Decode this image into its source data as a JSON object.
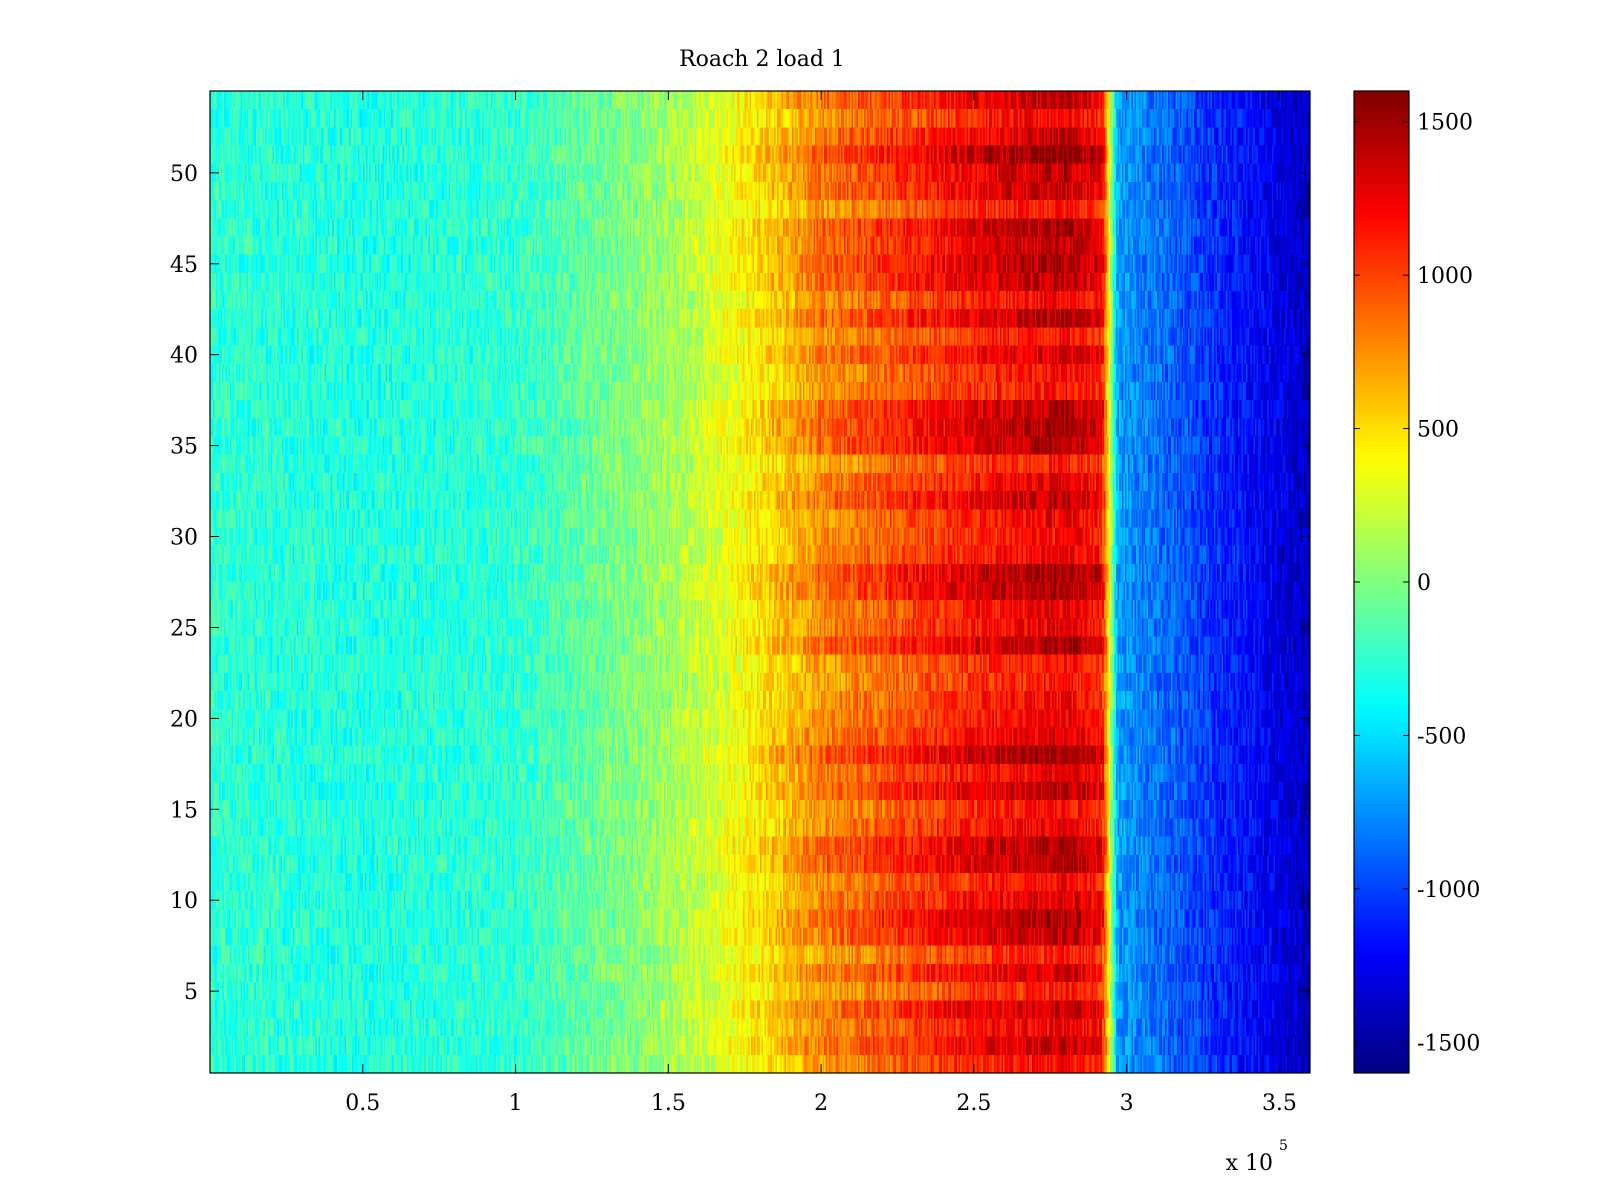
{
  "chart_data": {
    "type": "heatmap",
    "title": "Roach 2 load 1",
    "xlabel": "",
    "ylabel": "",
    "x_multiplier_label": "x 10",
    "x_multiplier_exponent": "5",
    "xlim": [
      0,
      360000
    ],
    "ylim": [
      0.5,
      54.5
    ],
    "rows": 54,
    "x_ticks": [
      0.5,
      1,
      1.5,
      2,
      2.5,
      3,
      3.5
    ],
    "x_tick_labels": [
      "0.5",
      "1",
      "1.5",
      "2",
      "2.5",
      "3",
      "3.5"
    ],
    "y_ticks": [
      5,
      10,
      15,
      20,
      25,
      30,
      35,
      40,
      45,
      50
    ],
    "y_tick_labels": [
      "5",
      "10",
      "15",
      "20",
      "25",
      "30",
      "35",
      "40",
      "45",
      "50"
    ],
    "colormap": "jet",
    "clim": [
      -1600,
      1600
    ],
    "colorbar_ticks": [
      1500,
      1000,
      500,
      0,
      -500,
      -1000,
      -1500
    ],
    "colorbar_tick_labels": [
      "1500",
      "1000",
      "500",
      "0",
      "-500",
      "-1000",
      "-1500"
    ],
    "approx_profile": {
      "x": [
        0,
        50000,
        100000,
        150000,
        170000,
        200000,
        250000,
        280000,
        292000,
        297000,
        360000
      ],
      "value": [
        -250,
        -300,
        -250,
        100,
        350,
        800,
        1200,
        1350,
        1200,
        -700,
        -1400
      ]
    },
    "notes_visible": []
  }
}
